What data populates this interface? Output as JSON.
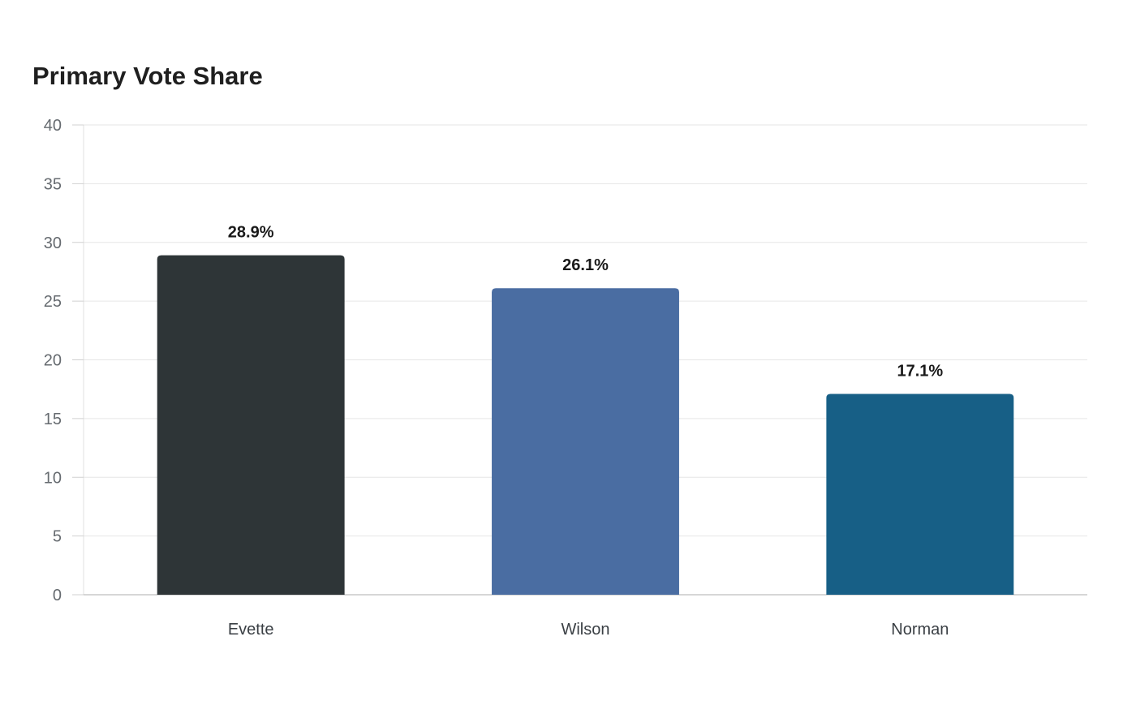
{
  "chart_data": {
    "type": "bar",
    "title": "Primary Vote Share",
    "xlabel": "",
    "ylabel": "",
    "categories": [
      "Evette",
      "Wilson",
      "Norman"
    ],
    "values": [
      28.9,
      26.1,
      17.1
    ],
    "data_labels": [
      "28.9%",
      "26.1%",
      "17.1%"
    ],
    "colors": [
      "#2e3537",
      "#4a6da2",
      "#175f86"
    ],
    "ylim": [
      0,
      40
    ],
    "yticks": [
      0,
      5,
      10,
      15,
      20,
      25,
      30,
      35,
      40
    ],
    "grid": true,
    "legend": "none"
  }
}
